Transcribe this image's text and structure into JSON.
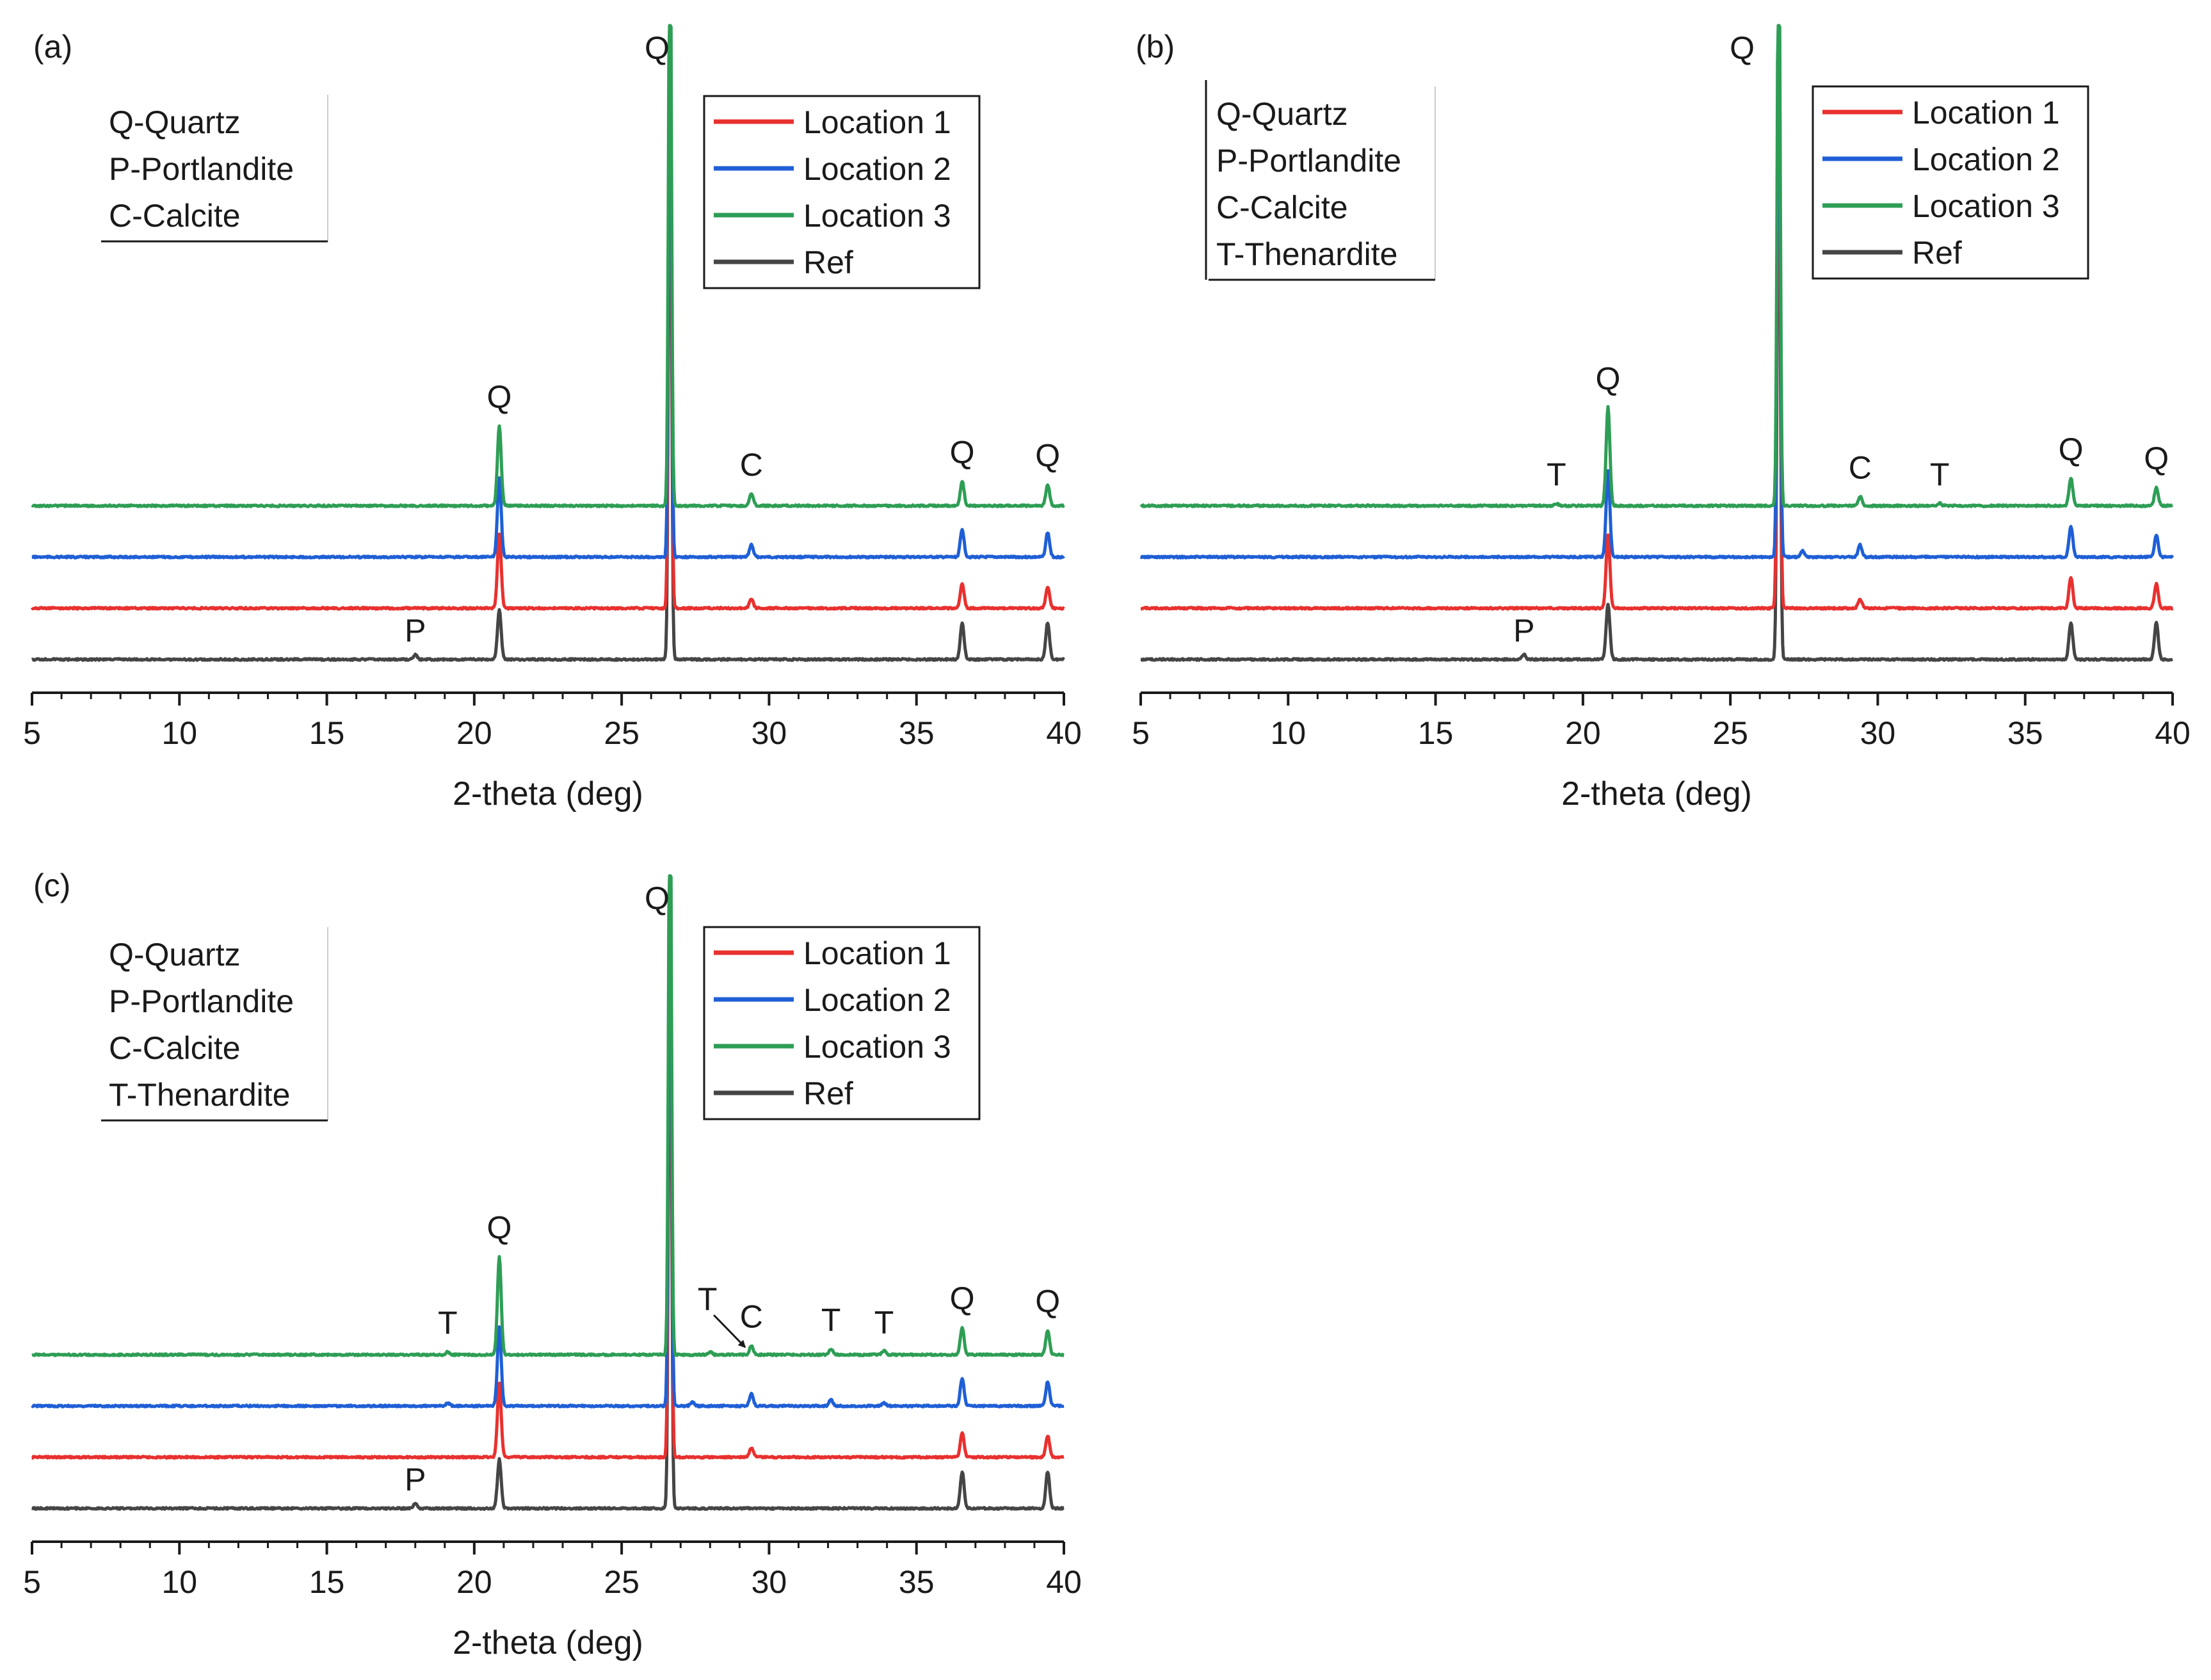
{
  "chart_data": [
    {
      "type": "line",
      "panel_label": "(a)",
      "xlabel": "2-theta (deg)",
      "ylabel": "",
      "xlim": [
        5,
        40
      ],
      "xticks": [
        5,
        10,
        15,
        20,
        25,
        30,
        35,
        40
      ],
      "tick_labels": [
        "5",
        "10",
        "15",
        "20",
        "25",
        "30",
        "35",
        "40"
      ],
      "y_axis_shown": false,
      "grid": false,
      "legend_position": "top-right",
      "key": [
        "Q-Quartz",
        "P-Portlandite",
        "C-Calcite"
      ],
      "series": [
        {
          "name": "Location 1",
          "color": "#e8312f",
          "baseline_offset": 1,
          "peaks": [
            {
              "x": 20.85,
              "h": 12
            },
            {
              "x": 26.64,
              "h": 100
            },
            {
              "x": 29.4,
              "h": 1.5
            },
            {
              "x": 36.55,
              "h": 4
            },
            {
              "x": 39.45,
              "h": 3.5
            }
          ]
        },
        {
          "name": "Location 2",
          "color": "#1f5fd6",
          "baseline_offset": 2,
          "peaks": [
            {
              "x": 20.85,
              "h": 13
            },
            {
              "x": 26.64,
              "h": 100
            },
            {
              "x": 29.4,
              "h": 2
            },
            {
              "x": 36.55,
              "h": 4.5
            },
            {
              "x": 39.45,
              "h": 4
            }
          ]
        },
        {
          "name": "Location 3",
          "color": "#2e9e55",
          "baseline_offset": 3,
          "peaks": [
            {
              "x": 20.85,
              "h": 13
            },
            {
              "x": 26.64,
              "h": 100
            },
            {
              "x": 29.4,
              "h": 2
            },
            {
              "x": 36.55,
              "h": 4
            },
            {
              "x": 39.45,
              "h": 3.5
            }
          ]
        },
        {
          "name": "Ref",
          "color": "#454545",
          "baseline_offset": 0,
          "peaks": [
            {
              "x": 18.0,
              "h": 0.8
            },
            {
              "x": 20.85,
              "h": 8
            },
            {
              "x": 26.64,
              "h": 100
            },
            {
              "x": 36.55,
              "h": 6
            },
            {
              "x": 39.45,
              "h": 6
            }
          ]
        }
      ],
      "peak_labels": [
        {
          "text": "P",
          "x": 18.0,
          "series": "Ref"
        },
        {
          "text": "Q",
          "x": 20.85,
          "series": "Location 3"
        },
        {
          "text": "Q",
          "x": 26.2,
          "series": "Location 3",
          "top": true
        },
        {
          "text": "C",
          "x": 29.4,
          "series": "Location 3"
        },
        {
          "text": "Q",
          "x": 36.55,
          "series": "Location 3"
        },
        {
          "text": "Q",
          "x": 39.45,
          "series": "Location 3"
        }
      ]
    },
    {
      "type": "line",
      "panel_label": "(b)",
      "xlabel": "2-theta (deg)",
      "ylabel": "",
      "xlim": [
        5,
        40
      ],
      "xticks": [
        5,
        10,
        15,
        20,
        25,
        30,
        35,
        40
      ],
      "tick_labels": [
        "5",
        "10",
        "15",
        "20",
        "25",
        "30",
        "35",
        "40"
      ],
      "y_axis_shown": false,
      "grid": false,
      "legend_position": "top-right",
      "key": [
        "Q-Quartz",
        "P-Portlandite",
        "C-Calcite",
        "T-Thenardite"
      ],
      "series": [
        {
          "name": "Location 1",
          "color": "#e8312f",
          "baseline_offset": 1,
          "peaks": [
            {
              "x": 20.85,
              "h": 12
            },
            {
              "x": 26.64,
              "h": 100
            },
            {
              "x": 29.4,
              "h": 1.5
            },
            {
              "x": 36.55,
              "h": 5
            },
            {
              "x": 39.45,
              "h": 4
            }
          ]
        },
        {
          "name": "Location 2",
          "color": "#1f5fd6",
          "baseline_offset": 2,
          "peaks": [
            {
              "x": 20.85,
              "h": 14
            },
            {
              "x": 26.64,
              "h": 100
            },
            {
              "x": 27.45,
              "h": 1
            },
            {
              "x": 29.4,
              "h": 2
            },
            {
              "x": 36.55,
              "h": 5
            },
            {
              "x": 39.45,
              "h": 3.5
            }
          ]
        },
        {
          "name": "Location 3",
          "color": "#2e9e55",
          "baseline_offset": 3,
          "peaks": [
            {
              "x": 19.1,
              "h": 0.4
            },
            {
              "x": 20.85,
              "h": 16
            },
            {
              "x": 26.64,
              "h": 100
            },
            {
              "x": 29.4,
              "h": 1.5
            },
            {
              "x": 32.1,
              "h": 0.4
            },
            {
              "x": 36.55,
              "h": 4.5
            },
            {
              "x": 39.45,
              "h": 3
            }
          ]
        },
        {
          "name": "Ref",
          "color": "#454545",
          "baseline_offset": 0,
          "peaks": [
            {
              "x": 18.0,
              "h": 0.8
            },
            {
              "x": 20.85,
              "h": 9
            },
            {
              "x": 26.64,
              "h": 100
            },
            {
              "x": 36.55,
              "h": 6
            },
            {
              "x": 39.45,
              "h": 6
            }
          ]
        }
      ],
      "peak_labels": [
        {
          "text": "P",
          "x": 18.0,
          "series": "Ref"
        },
        {
          "text": "T",
          "x": 19.1,
          "series": "Location 3"
        },
        {
          "text": "Q",
          "x": 20.85,
          "series": "Location 3"
        },
        {
          "text": "Q",
          "x": 25.4,
          "series": "Location 3",
          "top": true
        },
        {
          "text": "C",
          "x": 29.4,
          "series": "Location 3"
        },
        {
          "text": "T",
          "x": 32.1,
          "series": "Location 3"
        },
        {
          "text": "Q",
          "x": 36.55,
          "series": "Location 3"
        },
        {
          "text": "Q",
          "x": 39.45,
          "series": "Location 3"
        }
      ]
    },
    {
      "type": "line",
      "panel_label": "(c)",
      "xlabel": "2-theta (deg)",
      "ylabel": "",
      "xlim": [
        5,
        40
      ],
      "xticks": [
        5,
        10,
        15,
        20,
        25,
        30,
        35,
        40
      ],
      "tick_labels": [
        "5",
        "10",
        "15",
        "20",
        "25",
        "30",
        "35",
        "40"
      ],
      "y_axis_shown": false,
      "grid": false,
      "legend_position": "top-right",
      "key": [
        "Q-Quartz",
        "P-Portlandite",
        "C-Calcite",
        "T-Thenardite"
      ],
      "series": [
        {
          "name": "Location 1",
          "color": "#e8312f",
          "baseline_offset": 1,
          "peaks": [
            {
              "x": 20.85,
              "h": 12
            },
            {
              "x": 26.64,
              "h": 100
            },
            {
              "x": 29.4,
              "h": 1.5
            },
            {
              "x": 36.55,
              "h": 4
            },
            {
              "x": 39.45,
              "h": 3.5
            }
          ]
        },
        {
          "name": "Location 2",
          "color": "#1f5fd6",
          "baseline_offset": 2,
          "peaks": [
            {
              "x": 19.1,
              "h": 0.5
            },
            {
              "x": 20.85,
              "h": 13
            },
            {
              "x": 26.64,
              "h": 100
            },
            {
              "x": 27.4,
              "h": 0.6
            },
            {
              "x": 29.4,
              "h": 2
            },
            {
              "x": 32.1,
              "h": 1
            },
            {
              "x": 33.9,
              "h": 0.5
            },
            {
              "x": 36.55,
              "h": 4.5
            },
            {
              "x": 39.45,
              "h": 4
            }
          ]
        },
        {
          "name": "Location 3",
          "color": "#2e9e55",
          "baseline_offset": 3,
          "peaks": [
            {
              "x": 19.1,
              "h": 0.5
            },
            {
              "x": 20.85,
              "h": 16
            },
            {
              "x": 26.64,
              "h": 100
            },
            {
              "x": 28.0,
              "h": 0.5
            },
            {
              "x": 29.4,
              "h": 1.5
            },
            {
              "x": 32.1,
              "h": 1
            },
            {
              "x": 33.9,
              "h": 0.6
            },
            {
              "x": 36.55,
              "h": 4.5
            },
            {
              "x": 39.45,
              "h": 4
            }
          ]
        },
        {
          "name": "Ref",
          "color": "#454545",
          "baseline_offset": 0,
          "peaks": [
            {
              "x": 18.0,
              "h": 0.8
            },
            {
              "x": 20.85,
              "h": 8
            },
            {
              "x": 26.64,
              "h": 100
            },
            {
              "x": 36.55,
              "h": 6
            },
            {
              "x": 39.45,
              "h": 6
            }
          ]
        }
      ],
      "peak_labels": [
        {
          "text": "P",
          "x": 18.0,
          "series": "Ref"
        },
        {
          "text": "T",
          "x": 19.1,
          "series": "Location 3"
        },
        {
          "text": "Q",
          "x": 20.85,
          "series": "Location 3"
        },
        {
          "text": "Q",
          "x": 26.2,
          "series": "Location 3",
          "top": true
        },
        {
          "text": "T",
          "x": 28.3,
          "series": "Location 3",
          "arrow": true
        },
        {
          "text": "C",
          "x": 29.4,
          "series": "Location 3"
        },
        {
          "text": "T",
          "x": 32.1,
          "series": "Location 3"
        },
        {
          "text": "T",
          "x": 33.9,
          "series": "Location 3"
        },
        {
          "text": "Q",
          "x": 36.55,
          "series": "Location 3"
        },
        {
          "text": "Q",
          "x": 39.45,
          "series": "Location 3"
        }
      ]
    }
  ]
}
